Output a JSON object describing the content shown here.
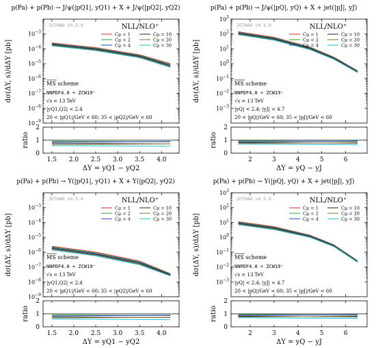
{
  "ylabel": "dσ(ΔY, s)/dΔY [pb]",
  "ratio_label": "ratio",
  "version": "JETHAD v0.5.0",
  "nll": "NLL/NLO⁺",
  "scheme": "MS scheme",
  "pdf": "NNPDF4.0 + ZCW19⁺",
  "energy": "√s = 13 TeV",
  "colors": {
    "1": "#d62728",
    "2": "#2ca02c",
    "4": "#1f3fbf",
    "10": "#222222",
    "20": "#8c6d31",
    "30": "#17becf"
  },
  "chart_data": [
    {
      "type": "line",
      "title": "p(Pa) + p(Pb) → J/ψ(|pQ1|, yQ1) + X + J/ψ(|pQ2|, yQ2)",
      "xlabel": "ΔY = yQ1 − yQ2",
      "ylabel": "dσ(ΔY, s)/dΔY [pb]",
      "logy": true,
      "xlim": [
        1.3,
        4.4
      ],
      "ylim_exp": [
        -9,
        -2
      ],
      "xticks": [
        1.5,
        2.0,
        2.5,
        3.0,
        3.5,
        4.0
      ],
      "xtick_labels": [
        "1.5",
        "2.0",
        "2.5",
        "3.0",
        "3.5",
        "4.0"
      ],
      "ytick_exp": [
        -9,
        -8,
        -7,
        -6,
        -5,
        -4,
        -3
      ],
      "rapidity_cuts": "|yQ1,Q2| < 2.4",
      "pt_cuts": "20 < |pQ1|/GeV < 60;  35 < |pQ2|/GeV < 60",
      "x": [
        1.5,
        2.5,
        3.5,
        4.2
      ],
      "y_upper_exp": [
        -3.6,
        -3.92,
        -4.4,
        -5.0
      ],
      "y_lower_exp": [
        -3.8,
        -4.12,
        -4.6,
        -5.25
      ],
      "ratio_lines": [
        0.92,
        0.84,
        0.76,
        0.66,
        0.58
      ],
      "series": [
        {
          "name": "Cμ = 1",
          "color_key": "1"
        },
        {
          "name": "Cμ = 2",
          "color_key": "2"
        },
        {
          "name": "Cμ = 4",
          "color_key": "4"
        },
        {
          "name": "Cμ = 10",
          "color_key": "10"
        },
        {
          "name": "Cμ = 20",
          "color_key": "20"
        },
        {
          "name": "Cμ = 30",
          "color_key": "30"
        }
      ]
    },
    {
      "type": "line",
      "title": "p(Pa) + p(Pb) → J/ψ(|pQ|, yQ) + X + jet(|pJ|, yJ)",
      "xlabel": "ΔY = yQ − yJ",
      "ylabel": "dσ(ΔY, s)/dΔY [pb]",
      "logy": true,
      "xlim": [
        1.2,
        6.9
      ],
      "ylim_exp": [
        -4,
        3
      ],
      "xticks": [
        2,
        3,
        4,
        5,
        6
      ],
      "xtick_labels": [
        "2",
        "3",
        "4",
        "5",
        "6"
      ],
      "ytick_exp": [
        -3,
        -2,
        -1,
        0,
        1,
        2,
        3
      ],
      "rapidity_cuts": "|yQ| < 2.4;  |yJ| < 4.7",
      "pt_cuts": "20 < |pQ|/GeV < 60;  35 < |pJ|/GeV < 60",
      "x": [
        1.5,
        3.0,
        4.5,
        5.5,
        6.5
      ],
      "y_upper_exp": [
        2.15,
        1.78,
        1.12,
        0.45,
        -0.48
      ],
      "y_lower_exp": [
        1.95,
        1.58,
        0.95,
        0.3,
        -0.6
      ],
      "ratio_lines": [
        0.95,
        0.88,
        0.82,
        0.75,
        0.7
      ],
      "series": [
        {
          "name": "Cμ = 1",
          "color_key": "1"
        },
        {
          "name": "Cμ = 2",
          "color_key": "2"
        },
        {
          "name": "Cμ = 4",
          "color_key": "4"
        },
        {
          "name": "Cμ = 10",
          "color_key": "10"
        },
        {
          "name": "Cμ = 20",
          "color_key": "20"
        },
        {
          "name": "Cμ = 30",
          "color_key": "30"
        }
      ]
    },
    {
      "type": "line",
      "title": "p(Pa) + p(Pb) → Υ(|pQ1|, yQ1) + X + Υ(|pQ2|, yQ2)",
      "xlabel": "ΔY = yQ1 − yQ2",
      "ylabel": "dσ(ΔY, s)/dΔY [pb]",
      "logy": true,
      "xlim": [
        1.3,
        4.4
      ],
      "ylim_exp": [
        -9,
        -2
      ],
      "xticks": [
        1.5,
        2.0,
        2.5,
        3.0,
        3.5,
        4.0
      ],
      "xtick_labels": [
        "1.5",
        "2.0",
        "2.5",
        "3.0",
        "3.5",
        "4.0"
      ],
      "ytick_exp": [
        -9,
        -8,
        -7,
        -6,
        -5,
        -4,
        -3
      ],
      "rapidity_cuts": "|yQ1,Q2| < 2.4",
      "pt_cuts": "20 < |pQ1|/GeV < 60;  35 < |pQ2|/GeV < 60",
      "x": [
        1.5,
        2.5,
        3.5,
        4.2
      ],
      "y_upper_exp": [
        -5.6,
        -6.0,
        -6.6,
        -7.45
      ],
      "y_lower_exp": [
        -5.85,
        -6.25,
        -6.85,
        -7.6
      ],
      "ratio_lines": [
        0.92,
        0.84,
        0.76,
        0.68,
        0.6
      ],
      "series": [
        {
          "name": "Cμ = 1",
          "color_key": "1"
        },
        {
          "name": "Cμ = 2",
          "color_key": "2"
        },
        {
          "name": "Cμ = 4",
          "color_key": "4"
        },
        {
          "name": "Cμ = 10",
          "color_key": "10"
        },
        {
          "name": "Cμ = 20",
          "color_key": "20"
        },
        {
          "name": "Cμ = 30",
          "color_key": "30"
        }
      ]
    },
    {
      "type": "line",
      "title": "p(Pa) + p(Pb) → Υ(|pQ|, yQ) + X + jet(|pJ|, yJ)",
      "xlabel": "ΔY = yQ − yJ",
      "ylabel": "dσ(ΔY, s)/dΔY [pb]",
      "logy": true,
      "xlim": [
        1.2,
        6.9
      ],
      "ylim_exp": [
        -4,
        3
      ],
      "xticks": [
        2,
        3,
        4,
        5,
        6
      ],
      "xtick_labels": [
        "2",
        "3",
        "4",
        "5",
        "6"
      ],
      "ytick_exp": [
        -3,
        -2,
        -1,
        0,
        1,
        2,
        3
      ],
      "rapidity_cuts": "|yQ| < 2.4;  |yJ| < 4.7",
      "pt_cuts": "20 < |pQ|/GeV < 60;  35 < |pJ|/GeV < 60",
      "x": [
        1.5,
        3.0,
        4.5,
        5.5,
        6.5
      ],
      "y_upper_exp": [
        1.05,
        0.72,
        0.15,
        -0.5,
        -1.58
      ],
      "y_lower_exp": [
        0.85,
        0.52,
        0.0,
        -0.62,
        -1.68
      ],
      "ratio_lines": [
        0.95,
        0.88,
        0.82,
        0.76,
        0.7
      ],
      "series": [
        {
          "name": "Cμ = 1",
          "color_key": "1"
        },
        {
          "name": "Cμ = 2",
          "color_key": "2"
        },
        {
          "name": "Cμ = 4",
          "color_key": "4"
        },
        {
          "name": "Cμ = 10",
          "color_key": "10"
        },
        {
          "name": "Cμ = 20",
          "color_key": "20"
        },
        {
          "name": "Cμ = 30",
          "color_key": "30"
        }
      ]
    }
  ]
}
